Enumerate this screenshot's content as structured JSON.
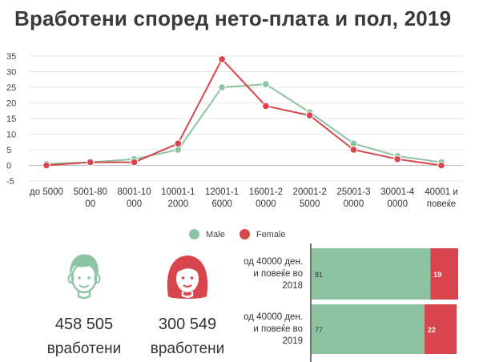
{
  "title": "Вработени според нето-плата и пол, 2019",
  "colors": {
    "male": "#8cc4a2",
    "female": "#d9454d"
  },
  "legend": {
    "male": "Male",
    "female": "Female"
  },
  "chart_data": [
    {
      "type": "line",
      "categories": [
        [
          "до 5000"
        ],
        [
          "5001-80",
          "00"
        ],
        [
          "8001-10",
          "000"
        ],
        [
          "10001-1",
          "2000"
        ],
        [
          "12001-1",
          "6000"
        ],
        [
          "16001-2",
          "0000"
        ],
        [
          "20001-2",
          "5000"
        ],
        [
          "25001-3",
          "0000"
        ],
        [
          "30001-4",
          "0000"
        ],
        [
          "40001 и",
          "повеќе"
        ]
      ],
      "series": [
        {
          "name": "Male",
          "values": [
            0.5,
            1,
            2,
            5,
            25,
            26,
            17,
            7,
            3,
            1
          ]
        },
        {
          "name": "Female",
          "values": [
            0,
            1,
            1,
            7,
            34,
            19,
            16,
            5,
            2,
            0
          ]
        }
      ],
      "y_ticks": [
        "35",
        "30",
        "25",
        "20",
        "15",
        "10",
        "5",
        "0",
        "-5"
      ],
      "ylim": [
        -5,
        35
      ],
      "grid": true,
      "legend_position": "bottom"
    },
    {
      "type": "bar",
      "stacked": true,
      "orientation": "horizontal",
      "categories": [
        [
          "од 40000 ден.",
          "и повеќе во",
          "2018"
        ],
        [
          "од 40000 ден.",
          "и повеќе во",
          "2019"
        ]
      ],
      "series": [
        {
          "name": "Male",
          "values": [
            81,
            77
          ],
          "labels": [
            "81",
            "77"
          ]
        },
        {
          "name": "Female",
          "values": [
            19,
            22
          ],
          "labels": [
            "19",
            "22"
          ]
        }
      ]
    }
  ],
  "male_summary": {
    "count": "458 505",
    "unit": "вработени",
    "icon": "man-icon"
  },
  "female_summary": {
    "count": "300 549",
    "unit": "вработени",
    "icon": "woman-icon"
  }
}
